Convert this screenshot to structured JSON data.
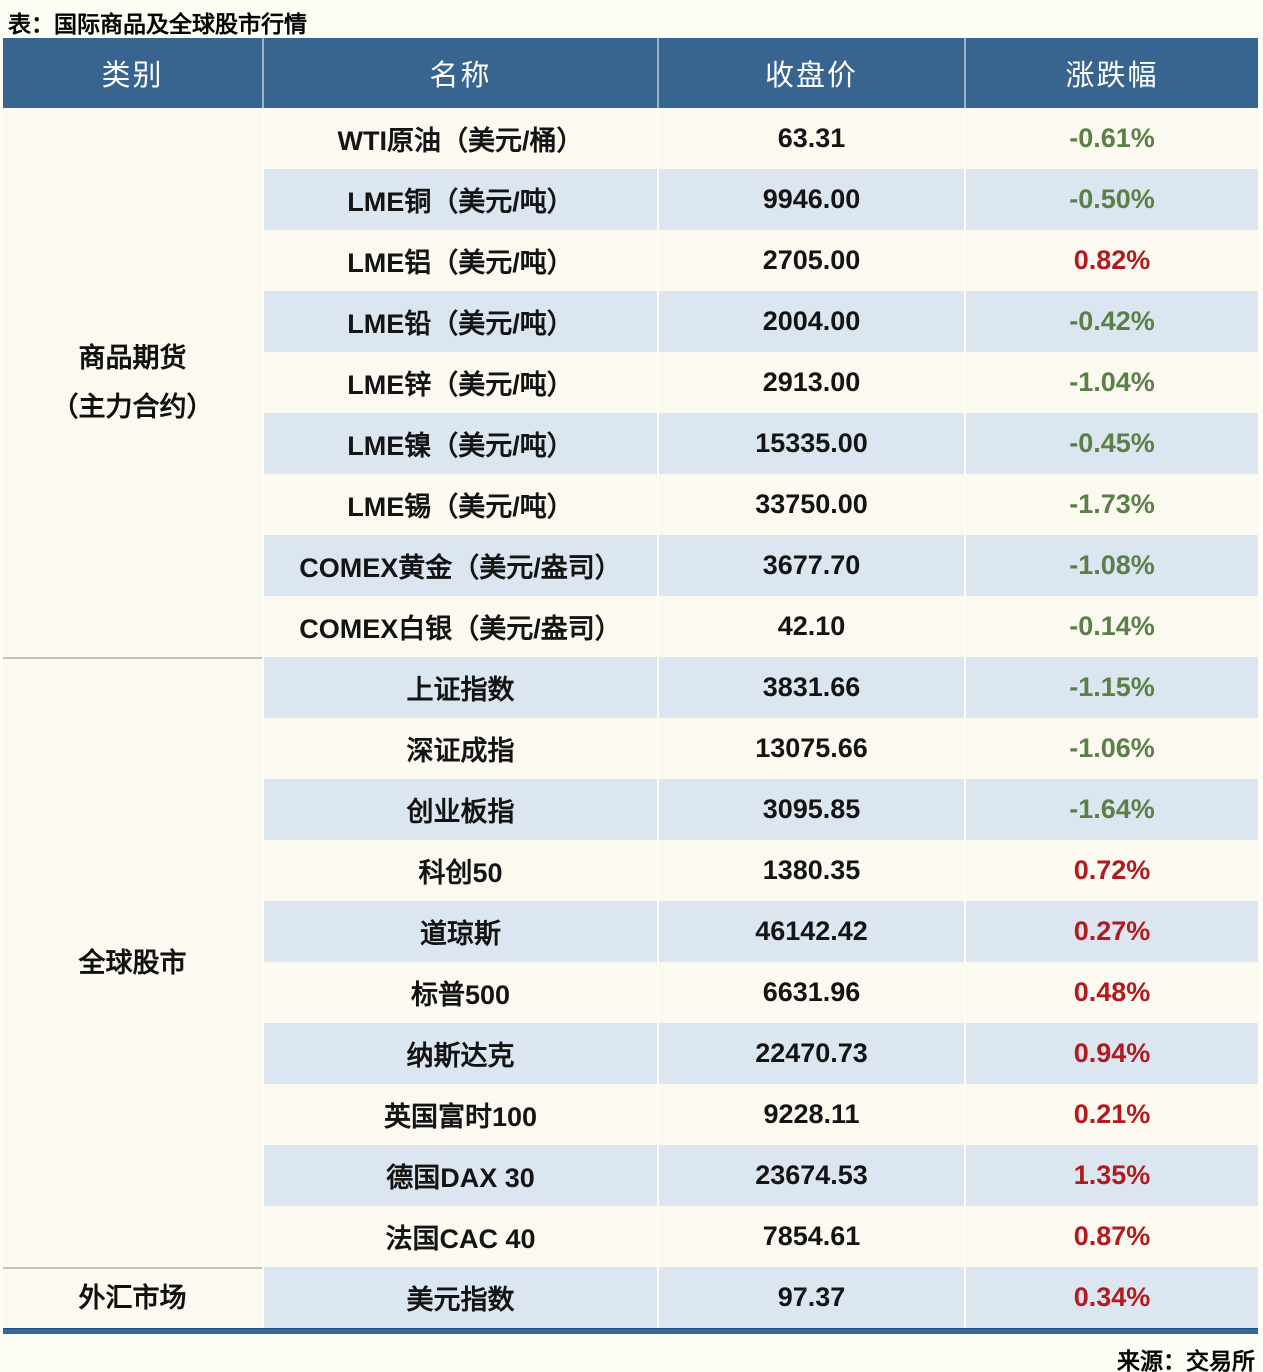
{
  "chart_data": {
    "type": "table",
    "title": "表：国际商品及全球股市行情",
    "source": "来源：交易所",
    "columns": [
      "类别",
      "名称",
      "收盘价",
      "涨跌幅"
    ],
    "layout": {
      "stripe_alternating": true,
      "first_row_stripe": "white"
    },
    "colors": {
      "header_bg": "#38658f",
      "header_text": "#ffffff",
      "stripe_blue": "#dce6f0",
      "stripe_white": "#fbf9f0",
      "positive_change": "#b11a1e",
      "negative_change": "#5a8048",
      "section_divider": "#c2c2c2",
      "bottom_border": "#35689a"
    },
    "sections": [
      {
        "category": "商品期货\n（主力合约）",
        "rows": [
          {
            "name": "WTI原油（美元/桶）",
            "close": "63.31",
            "change": "-0.61%"
          },
          {
            "name": "LME铜（美元/吨）",
            "close": "9946.00",
            "change": "-0.50%"
          },
          {
            "name": "LME铝（美元/吨）",
            "close": "2705.00",
            "change": "0.82%"
          },
          {
            "name": "LME铅（美元/吨）",
            "close": "2004.00",
            "change": "-0.42%"
          },
          {
            "name": "LME锌（美元/吨）",
            "close": "2913.00",
            "change": "-1.04%"
          },
          {
            "name": "LME镍（美元/吨）",
            "close": "15335.00",
            "change": "-0.45%"
          },
          {
            "name": "LME锡（美元/吨）",
            "close": "33750.00",
            "change": "-1.73%"
          },
          {
            "name": "COMEX黄金（美元/盎司）",
            "close": "3677.70",
            "change": "-1.08%"
          },
          {
            "name": "COMEX白银（美元/盎司）",
            "close": "42.10",
            "change": "-0.14%"
          }
        ]
      },
      {
        "category": "全球股市",
        "rows": [
          {
            "name": "上证指数",
            "close": "3831.66",
            "change": "-1.15%"
          },
          {
            "name": "深证成指",
            "close": "13075.66",
            "change": "-1.06%"
          },
          {
            "name": "创业板指",
            "close": "3095.85",
            "change": "-1.64%"
          },
          {
            "name": "科创50",
            "close": "1380.35",
            "change": "0.72%"
          },
          {
            "name": "道琼斯",
            "close": "46142.42",
            "change": "0.27%"
          },
          {
            "name": "标普500",
            "close": "6631.96",
            "change": "0.48%"
          },
          {
            "name": "纳斯达克",
            "close": "22470.73",
            "change": "0.94%"
          },
          {
            "name": "英国富时100",
            "close": "9228.11",
            "change": "0.21%"
          },
          {
            "name": "德国DAX 30",
            "close": "23674.53",
            "change": "1.35%"
          },
          {
            "name": "法国CAC 40",
            "close": "7854.61",
            "change": "0.87%"
          }
        ]
      },
      {
        "category": "外汇市场",
        "rows": [
          {
            "name": "美元指数",
            "close": "97.37",
            "change": "0.34%"
          }
        ]
      }
    ]
  }
}
